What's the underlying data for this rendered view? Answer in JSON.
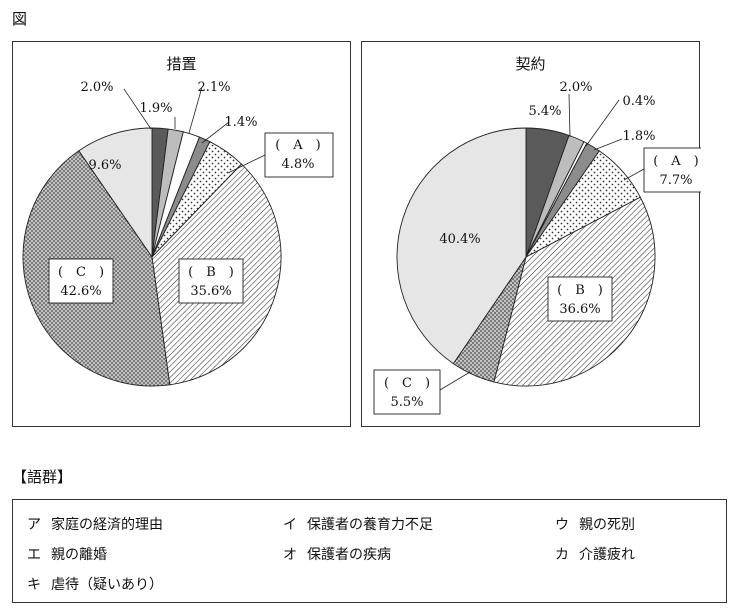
{
  "figure_label": "図",
  "chart_data": [
    {
      "type": "pie",
      "title": "措置",
      "slices": [
        {
          "label": "",
          "value": 2.0,
          "value_text": "2.0%",
          "pattern": "dark"
        },
        {
          "label": "",
          "value": 1.9,
          "value_text": "1.9%",
          "pattern": "light"
        },
        {
          "label": "",
          "value": 2.1,
          "value_text": "2.1%",
          "pattern": "white"
        },
        {
          "label": "",
          "value": 1.4,
          "value_text": "1.4%",
          "pattern": "mid"
        },
        {
          "label": "(　A　)",
          "value": 4.8,
          "value_text": "4.8%",
          "pattern": "dots"
        },
        {
          "label": "(　B　)",
          "value": 35.6,
          "value_text": "35.6%",
          "pattern": "hatch"
        },
        {
          "label": "(　C　)",
          "value": 42.6,
          "value_text": "42.6%",
          "pattern": "stipple"
        },
        {
          "label": "",
          "value": 9.6,
          "value_text": "9.6%",
          "pattern": "pale"
        }
      ]
    },
    {
      "type": "pie",
      "title": "契約",
      "slices": [
        {
          "label": "",
          "value": 5.4,
          "value_text": "5.4%",
          "pattern": "dark"
        },
        {
          "label": "",
          "value": 2.0,
          "value_text": "2.0%",
          "pattern": "light"
        },
        {
          "label": "",
          "value": 0.4,
          "value_text": "0.4%",
          "pattern": "white"
        },
        {
          "label": "",
          "value": 1.8,
          "value_text": "1.8%",
          "pattern": "mid"
        },
        {
          "label": "(　A　)",
          "value": 7.7,
          "value_text": "7.7%",
          "pattern": "dots"
        },
        {
          "label": "(　B　)",
          "value": 36.6,
          "value_text": "36.6%",
          "pattern": "hatch"
        },
        {
          "label": "(　C　)",
          "value": 5.5,
          "value_text": "5.5%",
          "pattern": "stipple"
        },
        {
          "label": "",
          "value": 40.4,
          "value_text": "40.4%",
          "pattern": "pale"
        }
      ]
    }
  ],
  "colors": {
    "dark": "#5a5a5a",
    "light": "#bdbdbd",
    "mid": "#8c8c8c",
    "pale": "#e6e6e6",
    "white": "#ffffff",
    "line": "#222222"
  },
  "term_group": {
    "heading": "【語群】",
    "items": [
      {
        "key": "ア",
        "text": "家庭の経済的理由"
      },
      {
        "key": "イ",
        "text": "保護者の養育力不足"
      },
      {
        "key": "ウ",
        "text": "親の死別"
      },
      {
        "key": "エ",
        "text": "親の離婚"
      },
      {
        "key": "オ",
        "text": "保護者の疾病"
      },
      {
        "key": "カ",
        "text": "介護疲れ"
      },
      {
        "key": "キ",
        "text": "虐待（疑いあり）"
      }
    ]
  }
}
